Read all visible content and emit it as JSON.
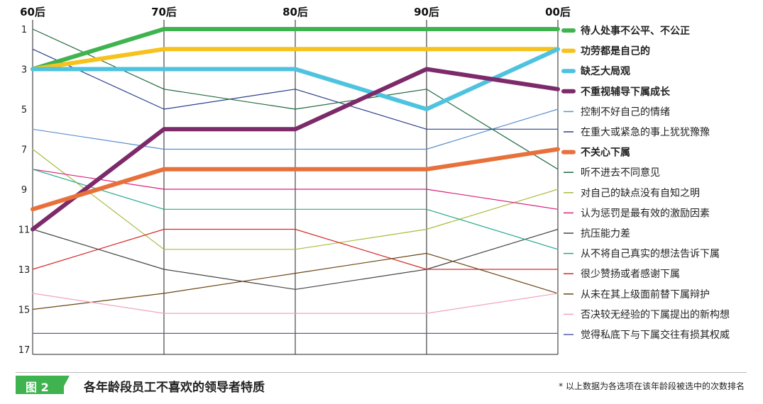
{
  "chart_data": {
    "type": "line",
    "x": [
      "60后",
      "70后",
      "80后",
      "90后",
      "00后"
    ],
    "ylim": [
      1,
      17
    ],
    "y_inverted": true,
    "yticks": [
      "1",
      "3",
      "5",
      "7",
      "9",
      "11",
      "13",
      "15",
      "17"
    ],
    "series": [
      {
        "name": "待人处事不公平、不公正",
        "color": "#3fb34f",
        "bold": true,
        "values": [
          3,
          1,
          1,
          1,
          1
        ]
      },
      {
        "name": "功劳都是自己的",
        "color": "#f6c21b",
        "bold": true,
        "values": [
          3,
          2,
          2,
          2,
          2
        ]
      },
      {
        "name": "缺乏大局观",
        "color": "#4ec3df",
        "bold": true,
        "values": [
          3,
          3,
          3,
          5,
          2
        ]
      },
      {
        "name": "不重视辅导下属成长",
        "color": "#7d2a6a",
        "bold": true,
        "values": [
          11,
          6,
          6,
          3,
          4
        ]
      },
      {
        "name": "控制不好自己的情绪",
        "color": "#5b8fcf",
        "bold": false,
        "values": [
          6,
          7,
          7,
          7,
          5
        ]
      },
      {
        "name": "在重大或紧急的事上犹犹豫豫",
        "color": "#2b3f8f",
        "bold": false,
        "values": [
          2,
          5,
          4,
          6,
          6
        ]
      },
      {
        "name": "不关心下属",
        "color": "#e8703a",
        "bold": true,
        "values": [
          10,
          8,
          8,
          8,
          7
        ]
      },
      {
        "name": "听不进去不同意见",
        "color": "#1e6b3f",
        "bold": false,
        "values": [
          1,
          4,
          5,
          4,
          8
        ]
      },
      {
        "name": "对自己的缺点没有自知之明",
        "color": "#a6bd3d",
        "bold": false,
        "values": [
          7,
          12,
          12,
          11,
          9
        ]
      },
      {
        "name": "认为惩罚是最有效的激励因素",
        "color": "#d9217a",
        "bold": false,
        "values": [
          8,
          9,
          9,
          9,
          10
        ]
      },
      {
        "name": "抗压能力差",
        "color": "#444444",
        "bold": false,
        "values": [
          11,
          13,
          14,
          13,
          11
        ]
      },
      {
        "name": "从不将自己真实的想法告诉下属",
        "color": "#23a98b",
        "bold": false,
        "values": [
          8,
          10,
          10,
          10,
          12
        ]
      },
      {
        "name": "很少赞扬或者感谢下属",
        "color": "#d62a2a",
        "bold": false,
        "values": [
          13,
          11,
          11,
          13,
          13
        ]
      },
      {
        "name": "从未在其上级面前替下属辩护",
        "color": "#6b4412",
        "bold": false,
        "values": [
          15,
          14.2,
          13.2,
          12.2,
          14.2
        ]
      },
      {
        "name": "否决较无经验的下属提出的新构想",
        "color": "#f2a3c0",
        "bold": false,
        "values": [
          14.2,
          15.2,
          15.2,
          15.2,
          14.2
        ]
      },
      {
        "name": "觉得私底下与下属交往有损其权威",
        "color": "#5a5aa8",
        "bold": false,
        "values": [
          16.2,
          16.2,
          16.2,
          16.2,
          16.2
        ]
      }
    ]
  },
  "footer": {
    "figure_label": "图 2",
    "title": "各年龄段员工不喜欢的领导者特质",
    "note": "* 以上数据为各选项在该年龄段被选中的次数排名"
  }
}
